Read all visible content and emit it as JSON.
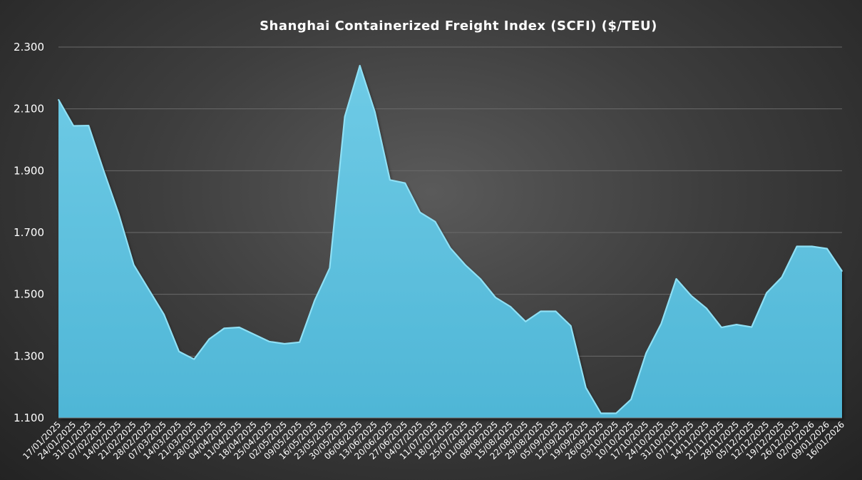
{
  "chart_data": {
    "type": "area",
    "title": "Shanghai Containerized Freight Index (SCFI) ($/TEU)",
    "xlabel": "",
    "ylabel": "",
    "ylim": [
      1100,
      2300
    ],
    "yticks": [
      1100,
      1300,
      1500,
      1700,
      1900,
      2100,
      2300
    ],
    "ytick_labels": [
      "1.100",
      "1.300",
      "1.500",
      "1.700",
      "1.900",
      "2.100",
      "2.300"
    ],
    "grid": true,
    "legend": "none",
    "colors": {
      "fill": "#4fb6d6",
      "fill_light": "#6fcbe6",
      "edge": "#8fe0f5",
      "grid": "#6a6a6a",
      "text": "#ffffff"
    },
    "categories": [
      "17/01/2025",
      "24/01/2025",
      "31/01/2025",
      "07/02/2025",
      "14/02/2025",
      "21/02/2025",
      "28/02/2025",
      "07/03/2025",
      "14/03/2025",
      "21/03/2025",
      "28/03/2025",
      "04/04/2025",
      "11/04/2025",
      "18/04/2025",
      "25/04/2025",
      "02/05/2025",
      "09/05/2025",
      "16/05/2025",
      "23/05/2025",
      "30/05/2025",
      "06/06/2025",
      "13/06/2025",
      "20/06/2025",
      "27/06/2025",
      "04/07/2025",
      "11/07/2025",
      "18/07/2025",
      "25/07/2025",
      "01/08/2025",
      "08/08/2025",
      "15/08/2025",
      "22/08/2025",
      "29/08/2025",
      "05/09/2025",
      "12/09/2025",
      "19/09/2025",
      "26/09/2025",
      "03/10/2025",
      "10/10/2025",
      "17/10/2025",
      "24/10/2025",
      "31/10/2025",
      "07/11/2025",
      "14/11/2025",
      "21/11/2025",
      "28/11/2025",
      "05/12/2025",
      "12/12/2025",
      "19/12/2025",
      "26/12/2025",
      "02/01/2026",
      "09/01/2026",
      "16/01/2026"
    ],
    "series": [
      {
        "values": [
          2130,
          2045,
          2046,
          1900,
          1760,
          1595,
          1515,
          1435,
          1315,
          1290,
          1355,
          1390,
          1393,
          1370,
          1347,
          1340,
          1345,
          1480,
          1585,
          2075,
          2240,
          2090,
          1870,
          1860,
          1765,
          1735,
          1650,
          1595,
          1550,
          1490,
          1460,
          1412,
          1445,
          1445,
          1398,
          1198,
          1115,
          1115,
          1160,
          1310,
          1405,
          1550,
          1495,
          1455,
          1393,
          1402,
          1394,
          1505,
          1555,
          1655,
          1655,
          1648,
          1575
        ]
      }
    ]
  }
}
